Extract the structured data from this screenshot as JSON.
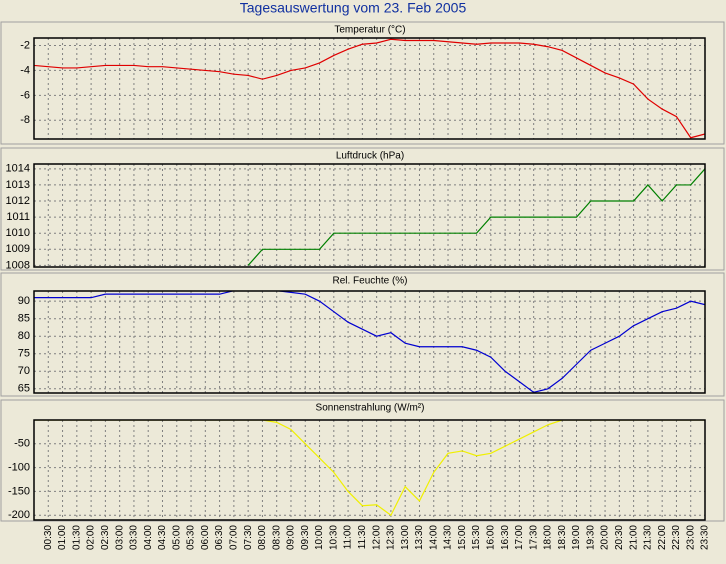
{
  "title": "Tagesauswertung vom 23. Feb 2005",
  "chart_data": [
    {
      "type": "line",
      "title": "Temperatur (°C)",
      "color": "#e00000",
      "ylim": [
        -9.5,
        -1.4
      ],
      "yticks": [
        -2,
        -4,
        -6,
        -8
      ],
      "grid": true,
      "values": [
        -3.6,
        -3.7,
        -3.8,
        -3.8,
        -3.7,
        -3.6,
        -3.6,
        -3.6,
        -3.7,
        -3.7,
        -3.8,
        -3.9,
        -4.0,
        -4.1,
        -4.3,
        -4.4,
        -4.7,
        -4.4,
        -4.0,
        -3.8,
        -3.4,
        -2.8,
        -2.3,
        -1.9,
        -1.8,
        -1.5,
        -1.6,
        -1.6,
        -1.6,
        -1.7,
        -1.8,
        -1.9,
        -1.8,
        -1.8,
        -1.8,
        -1.9,
        -2.1,
        -2.4,
        -3.0,
        -3.6,
        -4.2,
        -4.6,
        -5.1,
        -6.3,
        -7.1,
        -7.7,
        -9.4,
        -9.1
      ]
    },
    {
      "type": "line",
      "title": "Luftdruck (hPa)",
      "color": "#008000",
      "ylim": [
        1007.9,
        1014.3
      ],
      "yticks": [
        1008,
        1009,
        1010,
        1011,
        1012,
        1013,
        1014
      ],
      "grid": true,
      "values": [
        null,
        null,
        null,
        null,
        null,
        null,
        null,
        null,
        null,
        null,
        null,
        null,
        null,
        null,
        null,
        1008,
        1009,
        1009,
        1009,
        1009,
        1009,
        1010,
        1010,
        1010,
        1010,
        1010,
        1010,
        1010,
        1010,
        1010,
        1010,
        1010,
        1011,
        1011,
        1011,
        1011,
        1011,
        1011,
        1011,
        1012,
        1012,
        1012,
        1012,
        1013,
        1012,
        1013,
        1013,
        1014
      ]
    },
    {
      "type": "line",
      "title": "Rel. Feuchte (%)",
      "color": "#0000d0",
      "ylim": [
        63.8,
        92.9
      ],
      "yticks": [
        90,
        85,
        80,
        75,
        70,
        65
      ],
      "grid": true,
      "values": [
        91,
        91,
        91,
        91,
        91,
        92,
        92,
        92,
        92,
        92,
        92,
        92,
        92,
        92,
        93,
        93,
        93,
        93,
        92.5,
        92,
        90,
        87,
        84,
        82,
        80,
        81,
        78,
        77,
        77,
        77,
        77,
        76,
        74,
        70,
        67,
        64,
        65,
        68,
        72,
        76,
        78,
        80,
        83,
        85,
        87,
        88,
        90,
        89
      ]
    },
    {
      "type": "line",
      "title": "Sonnenstrahlung (W/m²)",
      "color": "#f0f000",
      "ylim": [
        -210,
        0
      ],
      "yticks": [
        -50,
        -100,
        -150,
        -200
      ],
      "grid": true,
      "values": [
        0,
        0,
        0,
        0,
        0,
        0,
        0,
        0,
        0,
        0,
        0,
        0,
        0,
        0,
        0,
        0,
        0,
        -5,
        -20,
        -50,
        -80,
        -110,
        -150,
        -180,
        -178,
        -200,
        -140,
        -170,
        -110,
        -70,
        -65,
        -75,
        -70,
        -55,
        -40,
        -25,
        -10,
        0,
        0,
        0,
        0,
        0,
        0,
        0,
        0,
        0,
        0,
        0
      ],
      "categories": [
        null,
        "00:30",
        "01:00",
        "01:30",
        "02:00",
        "02:30",
        "03:00",
        "03:30",
        "04:00",
        "04:30",
        "05:00",
        "05:30",
        "06:00",
        "06:30",
        "07:00",
        "07:30",
        "08:00",
        "08:30",
        "09:00",
        "09:30",
        "10:00",
        "10:30",
        "11:00",
        "11:30",
        "12:00",
        "12:30",
        "13:00",
        "13:30",
        "14:00",
        "14:30",
        "15:00",
        "15:30",
        "16:00",
        "16:30",
        "17:00",
        "17:30",
        "18:00",
        "18:30",
        "19:00",
        "19:30",
        "20:00",
        "20:30",
        "21:00",
        "21:30",
        "22:00",
        "22:30",
        "23:00",
        "23:30"
      ]
    }
  ]
}
